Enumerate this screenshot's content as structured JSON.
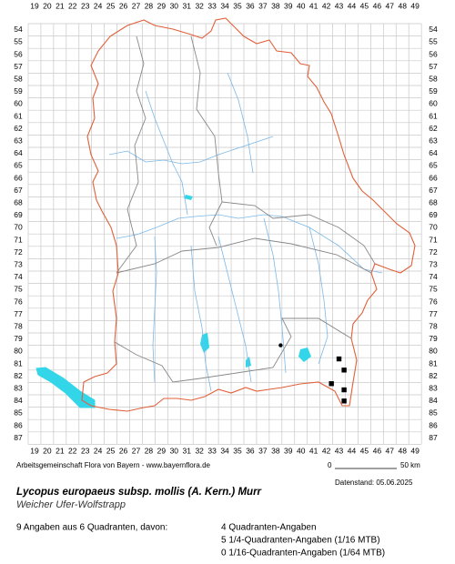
{
  "map": {
    "x_labels": [
      19,
      20,
      21,
      22,
      23,
      24,
      25,
      26,
      27,
      28,
      29,
      30,
      31,
      32,
      33,
      34,
      35,
      36,
      37,
      38,
      39,
      40,
      41,
      42,
      43,
      44,
      45,
      46,
      47,
      48,
      49
    ],
    "y_labels": [
      54,
      55,
      56,
      57,
      58,
      59,
      60,
      61,
      62,
      63,
      64,
      65,
      66,
      67,
      68,
      69,
      70,
      71,
      72,
      73,
      74,
      75,
      76,
      77,
      78,
      79,
      80,
      81,
      82,
      83,
      84,
      85,
      86,
      87
    ],
    "points": [
      {
        "x": 38.9,
        "y": 80.0,
        "shape": "circle"
      },
      {
        "x": 43.5,
        "y": 81.1,
        "shape": "square"
      },
      {
        "x": 43.9,
        "y": 82.0,
        "shape": "square"
      },
      {
        "x": 42.9,
        "y": 83.1,
        "shape": "square"
      },
      {
        "x": 43.9,
        "y": 83.6,
        "shape": "square"
      },
      {
        "x": 43.9,
        "y": 84.5,
        "shape": "square"
      }
    ]
  },
  "credit": "Arbeitsgemeinschaft Flora von Bayern - www.bayernflora.de",
  "scale": {
    "start": "0",
    "end": "50 km"
  },
  "date": "Datenstand: 05.06.2025",
  "title": "Lycopus europaeus subsp. mollis (A. Kern.) Murr",
  "subtitle": "Weicher Ufer-Wolfstrapp",
  "summary": "9 Angaben aus 6 Quadranten, davon:",
  "stats": [
    "4 Quadranten-Angaben",
    "5 1/4-Quadranten-Angaben (1/16 MTB)",
    "0 1/16-Quadranten-Angaben (1/64 MTB)"
  ]
}
